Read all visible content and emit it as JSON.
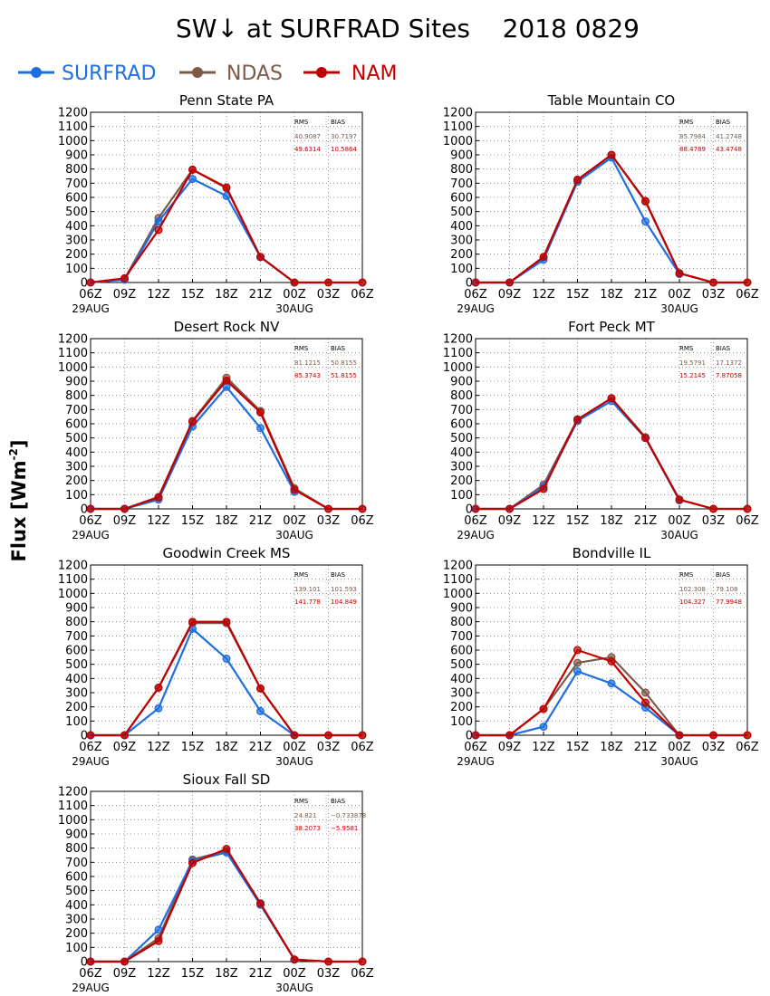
{
  "title": "SW↓ at SURFRAD Sites    2018 0829",
  "ylabel_text": "Flux [Wm",
  "ylabel_sup": "-2",
  "ylabel_close": "]",
  "legend": [
    {
      "name": "SURFRAD",
      "color": "#1f6fe0"
    },
    {
      "name": "NDAS",
      "color": "#7b5a4a"
    },
    {
      "name": "NAM",
      "color": "#c00000"
    }
  ],
  "stats_headers": {
    "rms": "RMS",
    "bias": "BIAS"
  },
  "chart_data": [
    {
      "type": "line",
      "title": "Penn State PA",
      "x": [
        "06Z",
        "09Z",
        "12Z",
        "15Z",
        "18Z",
        "21Z",
        "00Z",
        "03Z",
        "06Z"
      ],
      "date_labels": [
        "29AUG",
        "30AUG"
      ],
      "yticks": [
        0,
        100,
        200,
        300,
        400,
        500,
        600,
        700,
        800,
        900,
        1000,
        1100,
        1200
      ],
      "ylim": [
        0,
        1200
      ],
      "grid": true,
      "series": [
        {
          "name": "SURFRAD",
          "values": [
            0,
            20,
            430,
            730,
            610,
            180,
            0,
            null,
            null
          ]
        },
        {
          "name": "NDAS",
          "values": [
            0,
            25,
            455,
            795,
            665,
            180,
            0,
            0,
            0
          ]
        },
        {
          "name": "NAM",
          "values": [
            0,
            30,
            370,
            795,
            670,
            180,
            0,
            0,
            0
          ]
        }
      ],
      "stats": {
        "ndas": {
          "rms": "40.9087",
          "bias": "30.7197"
        },
        "nam": {
          "rms": "49.6314",
          "bias": "10.5864"
        }
      }
    },
    {
      "type": "line",
      "title": "Table Mountain CO",
      "x": [
        "06Z",
        "09Z",
        "12Z",
        "15Z",
        "18Z",
        "21Z",
        "00Z",
        "03Z",
        "06Z"
      ],
      "date_labels": [
        "29AUG",
        "30AUG"
      ],
      "yticks": [
        0,
        100,
        200,
        300,
        400,
        500,
        600,
        700,
        800,
        900,
        1000,
        1100,
        1200
      ],
      "ylim": [
        0,
        1200
      ],
      "grid": true,
      "series": [
        {
          "name": "SURFRAD",
          "values": [
            0,
            0,
            160,
            710,
            880,
            430,
            60,
            null,
            null
          ]
        },
        {
          "name": "NDAS",
          "values": [
            0,
            0,
            180,
            720,
            900,
            570,
            65,
            0,
            0
          ]
        },
        {
          "name": "NAM",
          "values": [
            0,
            0,
            180,
            725,
            900,
            575,
            65,
            0,
            0
          ]
        }
      ],
      "stats": {
        "ndas": {
          "rms": "85.7984",
          "bias": "41.2748"
        },
        "nam": {
          "rms": "88.4789",
          "bias": "43.4748"
        }
      }
    },
    {
      "type": "line",
      "title": "Desert Rock NV",
      "x": [
        "06Z",
        "09Z",
        "12Z",
        "15Z",
        "18Z",
        "21Z",
        "00Z",
        "03Z",
        "06Z"
      ],
      "date_labels": [
        "29AUG",
        "30AUG"
      ],
      "yticks": [
        0,
        100,
        200,
        300,
        400,
        500,
        600,
        700,
        800,
        900,
        1000,
        1100,
        1200
      ],
      "ylim": [
        0,
        1200
      ],
      "grid": true,
      "series": [
        {
          "name": "SURFRAD",
          "values": [
            0,
            0,
            65,
            580,
            860,
            570,
            120,
            null,
            null
          ]
        },
        {
          "name": "NDAS",
          "values": [
            0,
            0,
            85,
            620,
            925,
            690,
            145,
            0,
            0
          ]
        },
        {
          "name": "NAM",
          "values": [
            0,
            0,
            80,
            615,
            905,
            680,
            135,
            0,
            0
          ]
        }
      ],
      "stats": {
        "ndas": {
          "rms": "81.1215",
          "bias": "50.8155"
        },
        "nam": {
          "rms": "85.3743",
          "bias": "51.8155"
        }
      }
    },
    {
      "type": "line",
      "title": "Fort Peck MT",
      "x": [
        "06Z",
        "09Z",
        "12Z",
        "15Z",
        "18Z",
        "21Z",
        "00Z",
        "03Z",
        "06Z"
      ],
      "date_labels": [
        "29AUG",
        "30AUG"
      ],
      "yticks": [
        0,
        100,
        200,
        300,
        400,
        500,
        600,
        700,
        800,
        900,
        1000,
        1100,
        1200
      ],
      "ylim": [
        0,
        1200
      ],
      "grid": true,
      "series": [
        {
          "name": "SURFRAD",
          "values": [
            0,
            0,
            155,
            620,
            760,
            500,
            60,
            null,
            null
          ]
        },
        {
          "name": "NDAS",
          "values": [
            0,
            0,
            170,
            630,
            780,
            505,
            65,
            0,
            0
          ]
        },
        {
          "name": "NAM",
          "values": [
            0,
            0,
            140,
            630,
            780,
            500,
            65,
            0,
            0
          ]
        }
      ],
      "stats": {
        "ndas": {
          "rms": "19.5791",
          "bias": "17.1372"
        },
        "nam": {
          "rms": "15.2145",
          "bias": "7.87058"
        }
      }
    },
    {
      "type": "line",
      "title": "Goodwin Creek MS",
      "x": [
        "06Z",
        "09Z",
        "12Z",
        "15Z",
        "18Z",
        "21Z",
        "00Z",
        "03Z",
        "06Z"
      ],
      "date_labels": [
        "29AUG",
        "30AUG"
      ],
      "yticks": [
        0,
        100,
        200,
        300,
        400,
        500,
        600,
        700,
        800,
        900,
        1000,
        1100,
        1200
      ],
      "ylim": [
        0,
        1200
      ],
      "grid": true,
      "series": [
        {
          "name": "SURFRAD",
          "values": [
            0,
            0,
            190,
            750,
            540,
            170,
            0,
            null,
            null
          ]
        },
        {
          "name": "NDAS",
          "values": [
            0,
            0,
            335,
            790,
            790,
            330,
            0,
            0,
            0
          ]
        },
        {
          "name": "NAM",
          "values": [
            0,
            0,
            335,
            800,
            800,
            330,
            0,
            0,
            0
          ]
        }
      ],
      "stats": {
        "ndas": {
          "rms": "139.101",
          "bias": "101.593"
        },
        "nam": {
          "rms": "141.778",
          "bias": "104.849"
        }
      }
    },
    {
      "type": "line",
      "title": "Bondville IL",
      "x": [
        "06Z",
        "09Z",
        "12Z",
        "15Z",
        "18Z",
        "21Z",
        "00Z",
        "03Z",
        "06Z"
      ],
      "date_labels": [
        "29AUG",
        "30AUG"
      ],
      "yticks": [
        0,
        100,
        200,
        300,
        400,
        500,
        600,
        700,
        800,
        900,
        1000,
        1100,
        1200
      ],
      "ylim": [
        0,
        1200
      ],
      "grid": true,
      "series": [
        {
          "name": "SURFRAD",
          "values": [
            0,
            0,
            60,
            450,
            365,
            195,
            0,
            null,
            null
          ]
        },
        {
          "name": "NDAS",
          "values": [
            0,
            0,
            185,
            510,
            550,
            300,
            0,
            0,
            0
          ]
        },
        {
          "name": "NAM",
          "values": [
            0,
            0,
            185,
            600,
            520,
            230,
            0,
            0,
            0
          ]
        }
      ],
      "stats": {
        "ndas": {
          "rms": "102.308",
          "bias": "79.108"
        },
        "nam": {
          "rms": "104.327",
          "bias": "77.9948"
        }
      }
    },
    {
      "type": "line",
      "title": "Sioux Fall SD",
      "x": [
        "06Z",
        "09Z",
        "12Z",
        "15Z",
        "18Z",
        "21Z",
        "00Z",
        "03Z",
        "06Z"
      ],
      "date_labels": [
        "29AUG",
        "30AUG"
      ],
      "yticks": [
        0,
        100,
        200,
        300,
        400,
        500,
        600,
        700,
        800,
        900,
        1000,
        1100,
        1200
      ],
      "ylim": [
        0,
        1200
      ],
      "grid": true,
      "series": [
        {
          "name": "SURFRAD",
          "values": [
            0,
            0,
            225,
            710,
            770,
            400,
            15,
            null,
            null
          ]
        },
        {
          "name": "NDAS",
          "values": [
            0,
            0,
            165,
            720,
            780,
            410,
            15,
            0,
            0
          ]
        },
        {
          "name": "NAM",
          "values": [
            0,
            0,
            145,
            695,
            795,
            410,
            15,
            0,
            0
          ]
        }
      ],
      "stats": {
        "ndas": {
          "rms": "24.821",
          "bias": "−0.733878"
        },
        "nam": {
          "rms": "38.2073",
          "bias": "−5.9581"
        }
      }
    }
  ]
}
